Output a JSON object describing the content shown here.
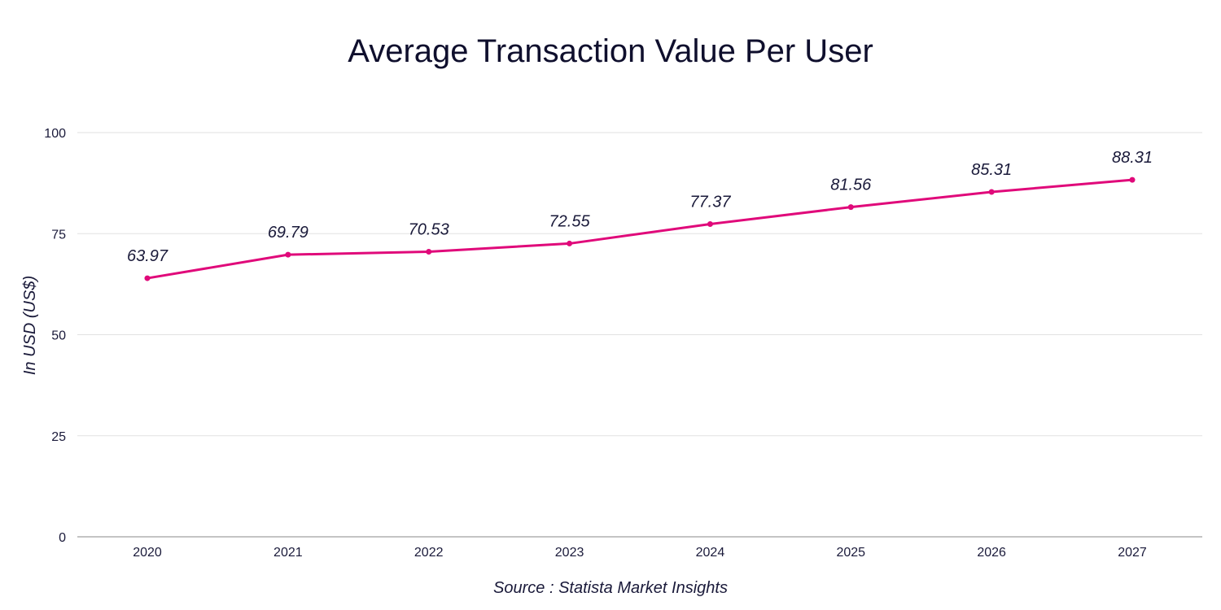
{
  "chart_data": {
    "type": "line",
    "title": "Average Transaction Value Per User",
    "xlabel": "",
    "ylabel": "In USD (US$)",
    "source": "Source : Statista Market Insights",
    "categories": [
      "2020",
      "2021",
      "2022",
      "2023",
      "2024",
      "2025",
      "2026",
      "2027"
    ],
    "series": [
      {
        "values": [
          63.97,
          69.79,
          70.53,
          72.55,
          77.37,
          81.56,
          85.31,
          88.31
        ]
      }
    ],
    "data_labels": [
      "63.97",
      "69.79",
      "70.53",
      "72.55",
      "77.37",
      "81.56",
      "85.31",
      "88.31"
    ],
    "ylim": [
      0,
      100
    ],
    "yticks": [
      0,
      25,
      50,
      75,
      100
    ],
    "ytick_labels": [
      "0",
      "25",
      "50",
      "75",
      "100"
    ],
    "grid": true,
    "legend": "none",
    "colors": {
      "line": "#e0097a",
      "grid": "#e2e2e2",
      "axis": "#888888",
      "text": "#1a1a3a"
    }
  }
}
